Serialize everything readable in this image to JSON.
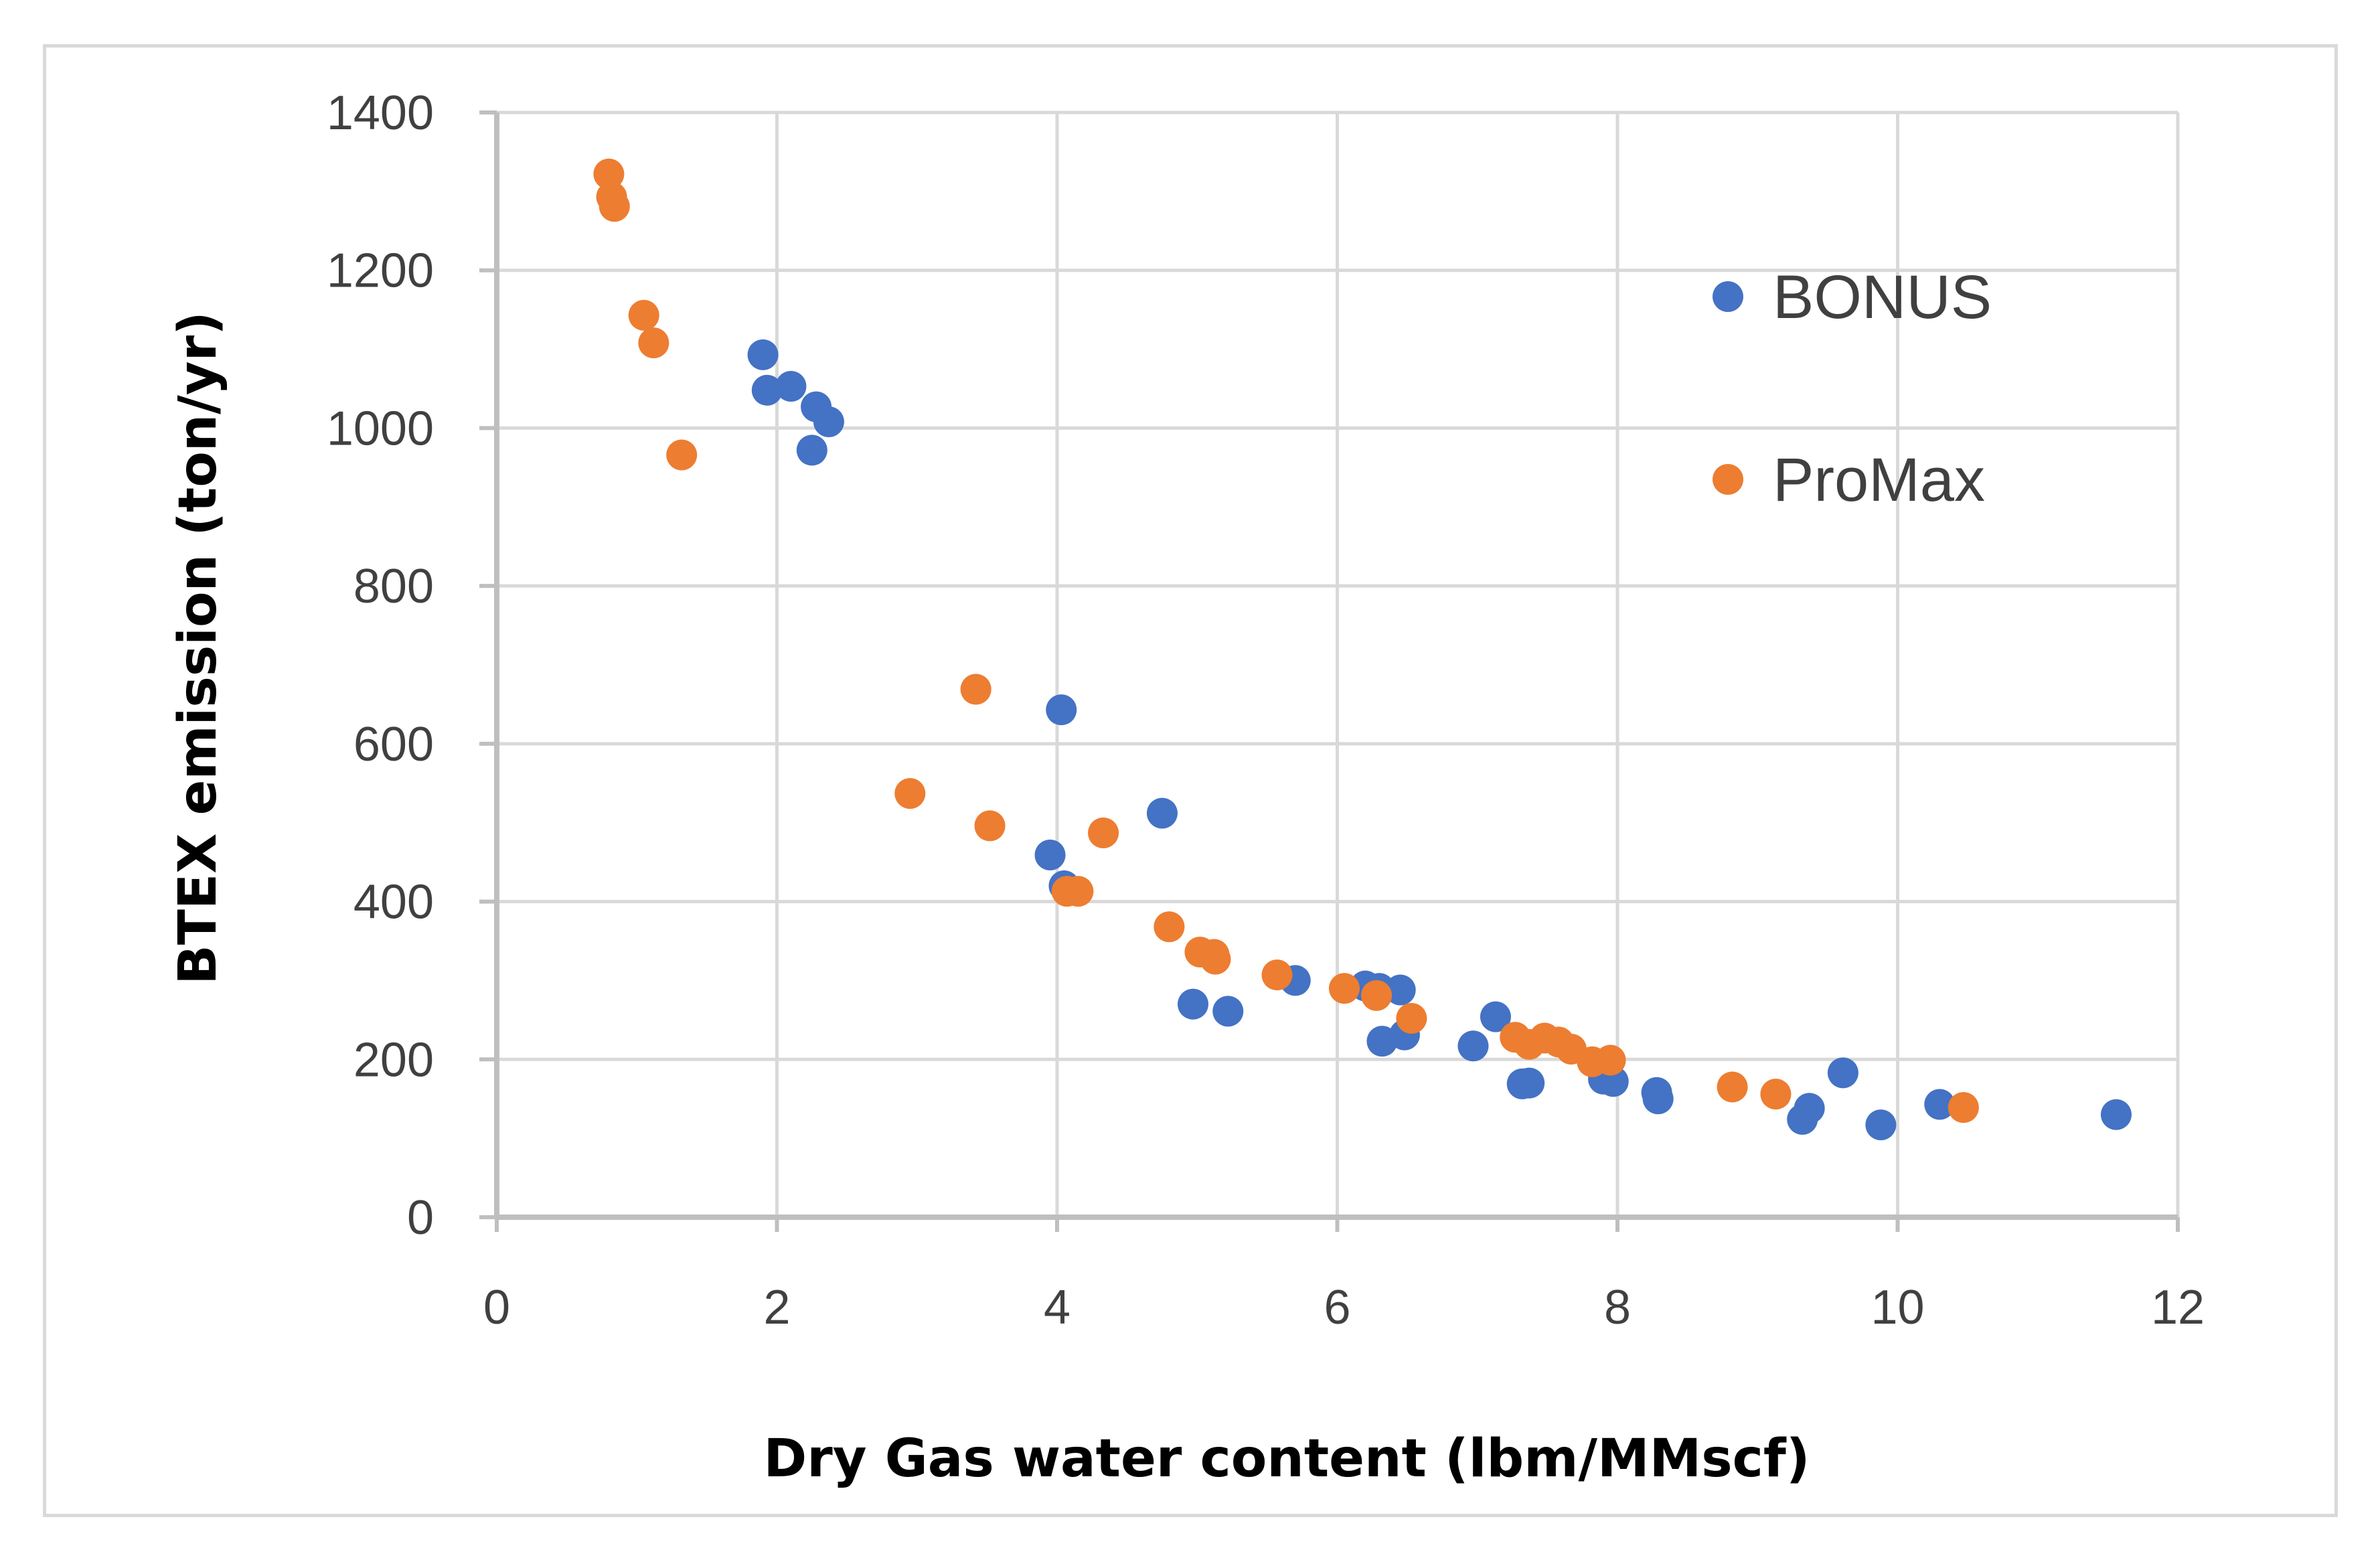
{
  "chart_data": {
    "type": "scatter",
    "title": "",
    "xlabel": "Dry Gas water content (lbm/MMscf)",
    "ylabel": "BTEX emission (ton/yr)",
    "xlim": [
      0,
      12
    ],
    "ylim": [
      0,
      1400
    ],
    "xticks": [
      0,
      2,
      4,
      6,
      8,
      10,
      12
    ],
    "yticks": [
      0,
      200,
      400,
      600,
      800,
      1000,
      1200,
      1400
    ],
    "xtick_labels": [
      "0",
      "2",
      "4",
      "6",
      "8",
      "10",
      "12"
    ],
    "ytick_labels": [
      "0",
      "200",
      "400",
      "600",
      "800",
      "1000",
      "1200",
      "1400"
    ],
    "grid": true,
    "legend_position": "right",
    "series": [
      {
        "name": "BONUS",
        "color": "#4472c4",
        "points": [
          [
            1.9,
            1093
          ],
          [
            1.93,
            1048
          ],
          [
            2.1,
            1053
          ],
          [
            2.28,
            1027
          ],
          [
            2.37,
            1008
          ],
          [
            2.25,
            972
          ],
          [
            4.03,
            643
          ],
          [
            4.75,
            512
          ],
          [
            3.95,
            459
          ],
          [
            4.05,
            420
          ],
          [
            4.97,
            270
          ],
          [
            5.22,
            261
          ],
          [
            5.7,
            300
          ],
          [
            6.2,
            293
          ],
          [
            6.3,
            290
          ],
          [
            6.45,
            288
          ],
          [
            6.32,
            223
          ],
          [
            6.48,
            231
          ],
          [
            6.97,
            217
          ],
          [
            7.13,
            254
          ],
          [
            7.32,
            169
          ],
          [
            7.37,
            170
          ],
          [
            7.9,
            175
          ],
          [
            7.97,
            172
          ],
          [
            8.28,
            158
          ],
          [
            8.29,
            150
          ],
          [
            9.32,
            124
          ],
          [
            9.37,
            138
          ],
          [
            9.61,
            183
          ],
          [
            9.88,
            117
          ],
          [
            10.3,
            143
          ],
          [
            11.56,
            130
          ]
        ]
      },
      {
        "name": "ProMax",
        "color": "#ed7d31",
        "points": [
          [
            0.8,
            1322
          ],
          [
            0.82,
            1293
          ],
          [
            0.84,
            1281
          ],
          [
            1.05,
            1143
          ],
          [
            1.12,
            1108
          ],
          [
            1.32,
            966
          ],
          [
            3.42,
            669
          ],
          [
            2.95,
            537
          ],
          [
            3.52,
            496
          ],
          [
            4.33,
            487
          ],
          [
            4.07,
            413
          ],
          [
            4.15,
            413
          ],
          [
            4.8,
            368
          ],
          [
            5.02,
            336
          ],
          [
            5.12,
            333
          ],
          [
            5.13,
            327
          ],
          [
            5.57,
            307
          ],
          [
            6.05,
            290
          ],
          [
            6.28,
            281
          ],
          [
            6.53,
            252
          ],
          [
            7.27,
            228
          ],
          [
            7.37,
            219
          ],
          [
            7.48,
            227
          ],
          [
            7.58,
            222
          ],
          [
            7.67,
            213
          ],
          [
            7.82,
            197
          ],
          [
            7.95,
            199
          ],
          [
            8.82,
            165
          ],
          [
            9.13,
            156
          ],
          [
            10.47,
            139
          ]
        ]
      }
    ]
  },
  "style": {
    "grid_color": "#d9d9d9",
    "axis_color": "#bfbfbf",
    "frame_color": "#d9d9d9"
  }
}
